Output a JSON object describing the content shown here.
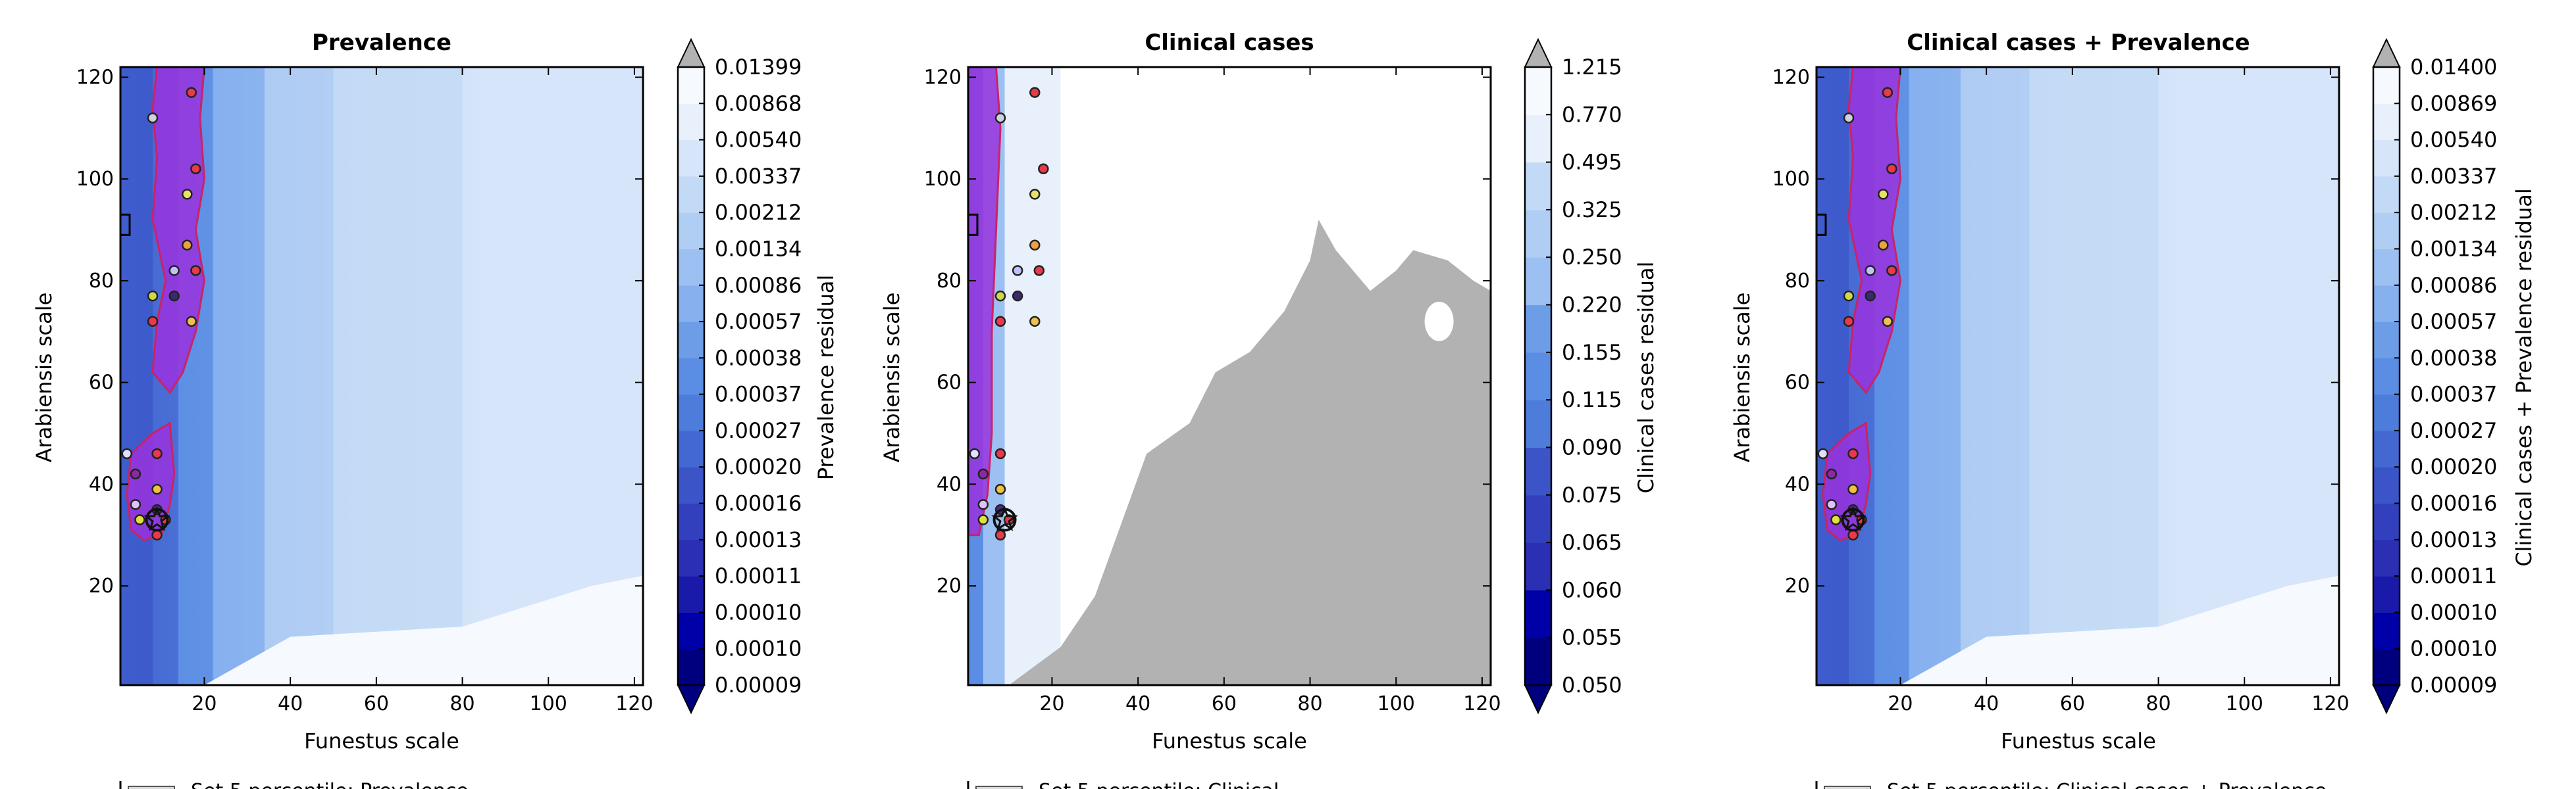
{
  "colors": {
    "palette": [
      "#00007f",
      "#0000a8",
      "#1a1aaa",
      "#2a2fb4",
      "#3340be",
      "#3b55c9",
      "#4468d2",
      "#4d7cdb",
      "#5a8de3",
      "#6e9de8",
      "#86b0ee",
      "#9cc0f1",
      "#b0cdf3",
      "#c3daf6",
      "#d6e5f9",
      "#e8f0fb",
      "#f6f9fe",
      "#ffffff"
    ],
    "mask": "#b2b2b2",
    "region_fill": "#9933dd",
    "region_edge": "#cc2266"
  },
  "chart_data": [
    {
      "type": "heatmap",
      "title": "Prevalence",
      "xlabel": "Funestus scale",
      "ylabel": "Arabiensis scale",
      "xlim": [
        0.5,
        122
      ],
      "ylim": [
        0.5,
        122
      ],
      "xticks": [
        20,
        40,
        60,
        80,
        100,
        120
      ],
      "yticks": [
        20,
        40,
        60,
        80,
        100,
        120
      ],
      "colorbar_label": "Prevalence residual",
      "colorbar_levels": [
        "0.00009",
        "0.00010",
        "0.00010",
        "0.00011",
        "0.00013",
        "0.00016",
        "0.00020",
        "0.00027",
        "0.00037",
        "0.00038",
        "0.00057",
        "0.00086",
        "0.00134",
        "0.00212",
        "0.00337",
        "0.00540",
        "0.00868",
        "0.01399"
      ],
      "colorbar_extend": "both",
      "best_point": [
        9,
        33
      ],
      "points": [
        [
          17,
          117
        ],
        [
          8,
          112
        ],
        [
          18,
          102
        ],
        [
          16,
          97
        ],
        [
          16,
          87
        ],
        [
          13,
          82
        ],
        [
          18,
          82
        ],
        [
          8,
          77
        ],
        [
          13,
          77
        ],
        [
          8,
          72
        ],
        [
          17,
          72
        ],
        [
          2,
          46
        ],
        [
          9,
          46
        ],
        [
          4,
          42
        ],
        [
          9,
          39
        ],
        [
          4,
          36
        ],
        [
          9,
          35
        ],
        [
          5,
          33
        ],
        [
          11,
          33
        ],
        [
          9,
          30
        ]
      ],
      "legend_partial": "Set 5 percentile: Prevalence"
    },
    {
      "type": "heatmap",
      "title": "Clinical cases",
      "xlabel": "Funestus scale",
      "ylabel": "Arabiensis scale",
      "xlim": [
        0.5,
        122
      ],
      "ylim": [
        0.5,
        122
      ],
      "xticks": [
        20,
        40,
        60,
        80,
        100,
        120
      ],
      "yticks": [
        20,
        40,
        60,
        80,
        100,
        120
      ],
      "colorbar_label": "Clinical cases residual",
      "colorbar_levels": [
        "0.050",
        "0.055",
        "0.060",
        "0.065",
        "0.075",
        "0.090",
        "0.115",
        "0.155",
        "0.220",
        "0.250",
        "0.325",
        "0.495",
        "0.770",
        "1.215"
      ],
      "colorbar_extend": "both",
      "best_point": [
        9,
        33
      ],
      "points": [
        [
          16,
          117
        ],
        [
          8,
          112
        ],
        [
          18,
          102
        ],
        [
          16,
          97
        ],
        [
          16,
          87
        ],
        [
          12,
          82
        ],
        [
          17,
          82
        ],
        [
          8,
          77
        ],
        [
          12,
          77
        ],
        [
          8,
          72
        ],
        [
          16,
          72
        ],
        [
          2,
          46
        ],
        [
          8,
          46
        ],
        [
          4,
          42
        ],
        [
          8,
          39
        ],
        [
          4,
          36
        ],
        [
          8,
          35
        ],
        [
          4,
          33
        ],
        [
          10,
          33
        ],
        [
          8,
          30
        ]
      ],
      "legend_partial": "Set 5 percentile: Clinical"
    },
    {
      "type": "heatmap",
      "title": "Clinical cases + Prevalence",
      "xlabel": "Funestus scale",
      "ylabel": "Arabiensis scale",
      "xlim": [
        0.5,
        122
      ],
      "ylim": [
        0.5,
        122
      ],
      "xticks": [
        20,
        40,
        60,
        80,
        100,
        120
      ],
      "yticks": [
        20,
        40,
        60,
        80,
        100,
        120
      ],
      "colorbar_label": "Clinical cases + Prevalence residual",
      "colorbar_levels": [
        "0.00009",
        "0.00010",
        "0.00010",
        "0.00011",
        "0.00013",
        "0.00016",
        "0.00020",
        "0.00027",
        "0.00037",
        "0.00038",
        "0.00057",
        "0.00086",
        "0.00134",
        "0.00212",
        "0.00337",
        "0.00540",
        "0.00869",
        "0.01400"
      ],
      "colorbar_extend": "both",
      "best_point": [
        9,
        33
      ],
      "points": [
        [
          17,
          117
        ],
        [
          8,
          112
        ],
        [
          18,
          102
        ],
        [
          16,
          97
        ],
        [
          16,
          87
        ],
        [
          13,
          82
        ],
        [
          18,
          82
        ],
        [
          8,
          77
        ],
        [
          13,
          77
        ],
        [
          8,
          72
        ],
        [
          17,
          72
        ],
        [
          2,
          46
        ],
        [
          9,
          46
        ],
        [
          4,
          42
        ],
        [
          9,
          39
        ],
        [
          4,
          36
        ],
        [
          9,
          35
        ],
        [
          5,
          33
        ],
        [
          11,
          33
        ],
        [
          9,
          30
        ]
      ],
      "legend_partial": "Set 5 percentile: Clinical cases + Prevalence"
    }
  ]
}
